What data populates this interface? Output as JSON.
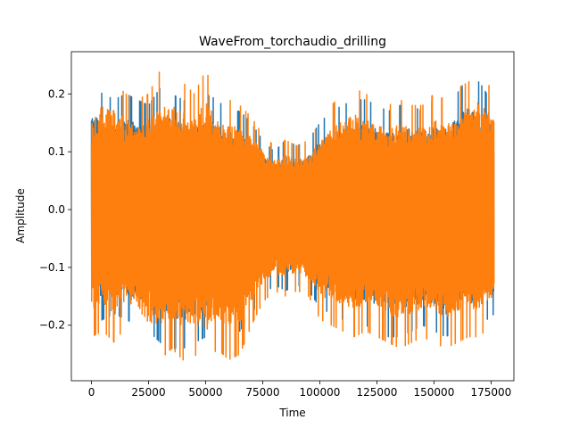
{
  "chart_data": {
    "type": "line",
    "title": "WaveFrom_torchaudio_drilling",
    "xlabel": "Time",
    "ylabel": "Amplitude",
    "xlim": [
      -8800,
      185000
    ],
    "ylim": [
      -0.296,
      0.273
    ],
    "x_ticks": [
      0,
      25000,
      50000,
      75000,
      100000,
      125000,
      150000,
      175000
    ],
    "x_tick_labels": [
      "0",
      "25000",
      "50000",
      "75000",
      "100000",
      "125000",
      "150000",
      "175000"
    ],
    "y_ticks": [
      -0.2,
      -0.1,
      0.0,
      0.1,
      0.2
    ],
    "y_tick_labels": [
      "−0.2",
      "−0.1",
      "0.0",
      "0.1",
      "0.2"
    ],
    "grid": false,
    "legend": "none",
    "samples": 176400,
    "series": [
      {
        "color": "#1f77b4",
        "envelope": {
          "x": [
            0,
            5000,
            10000,
            15000,
            20000,
            25000,
            30000,
            35000,
            40000,
            45000,
            50000,
            55000,
            60000,
            65000,
            70000,
            75000,
            80000,
            85000,
            90000,
            95000,
            100000,
            105000,
            110000,
            115000,
            120000,
            125000,
            130000,
            135000,
            140000,
            145000,
            150000,
            155000,
            160000,
            165000,
            170000,
            176400
          ],
          "max": [
            0.21,
            0.2,
            0.19,
            0.2,
            0.19,
            0.18,
            0.21,
            0.2,
            0.19,
            0.18,
            0.2,
            0.19,
            0.17,
            0.17,
            0.15,
            0.12,
            0.1,
            0.12,
            0.11,
            0.12,
            0.15,
            0.17,
            0.18,
            0.19,
            0.19,
            0.18,
            0.17,
            0.18,
            0.18,
            0.17,
            0.19,
            0.18,
            0.2,
            0.23,
            0.22,
            0.18
          ],
          "min": [
            -0.2,
            -0.19,
            -0.18,
            -0.19,
            -0.2,
            -0.21,
            -0.23,
            -0.24,
            -0.24,
            -0.23,
            -0.22,
            -0.21,
            -0.22,
            -0.21,
            -0.18,
            -0.15,
            -0.13,
            -0.14,
            -0.13,
            -0.14,
            -0.17,
            -0.18,
            -0.19,
            -0.2,
            -0.2,
            -0.21,
            -0.22,
            -0.22,
            -0.21,
            -0.2,
            -0.21,
            -0.22,
            -0.21,
            -0.21,
            -0.2,
            -0.18
          ]
        }
      },
      {
        "color": "#ff7f0e",
        "envelope": {
          "x": [
            0,
            5000,
            10000,
            15000,
            20000,
            25000,
            30000,
            35000,
            40000,
            45000,
            50000,
            55000,
            60000,
            65000,
            70000,
            75000,
            80000,
            85000,
            90000,
            95000,
            100000,
            105000,
            110000,
            115000,
            120000,
            125000,
            130000,
            135000,
            140000,
            145000,
            150000,
            155000,
            160000,
            165000,
            170000,
            176400
          ],
          "max": [
            0.2,
            0.23,
            0.22,
            0.2,
            0.19,
            0.2,
            0.24,
            0.23,
            0.22,
            0.2,
            0.24,
            0.2,
            0.19,
            0.18,
            0.16,
            0.13,
            0.11,
            0.12,
            0.11,
            0.12,
            0.15,
            0.18,
            0.2,
            0.21,
            0.2,
            0.19,
            0.18,
            0.19,
            0.18,
            0.18,
            0.2,
            0.19,
            0.21,
            0.22,
            0.24,
            0.2
          ],
          "min": [
            -0.22,
            -0.21,
            -0.23,
            -0.2,
            -0.22,
            -0.25,
            -0.26,
            -0.24,
            -0.26,
            -0.25,
            -0.27,
            -0.24,
            -0.26,
            -0.25,
            -0.2,
            -0.16,
            -0.14,
            -0.15,
            -0.14,
            -0.15,
            -0.19,
            -0.2,
            -0.21,
            -0.22,
            -0.21,
            -0.22,
            -0.23,
            -0.24,
            -0.23,
            -0.22,
            -0.23,
            -0.24,
            -0.23,
            -0.22,
            -0.22,
            -0.19
          ]
        }
      }
    ]
  }
}
